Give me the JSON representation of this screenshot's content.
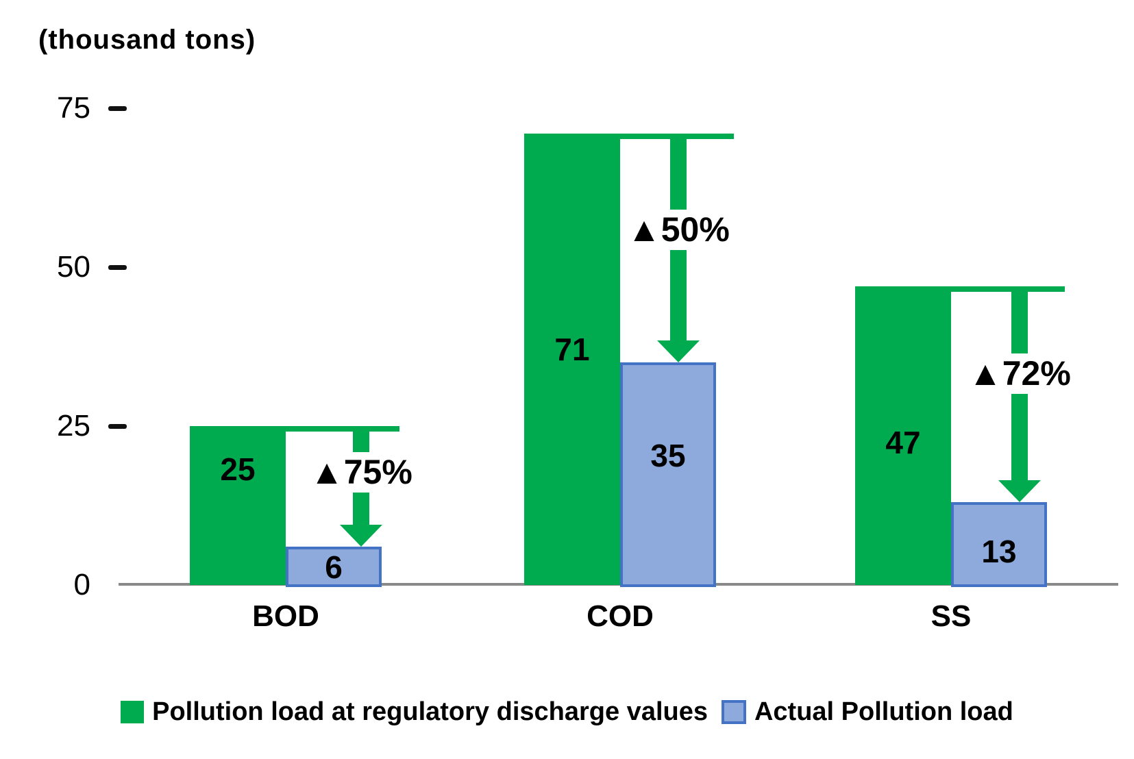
{
  "unit_label": "(thousand tons)",
  "chart_data": {
    "type": "bar",
    "title": "(thousand tons)",
    "categories": [
      "BOD",
      "COD",
      "SS"
    ],
    "series": [
      {
        "name": "Pollution load at regulatory discharge values",
        "color": "#00AB50",
        "values": [
          25,
          71,
          47
        ]
      },
      {
        "name": "Actual Pollution load",
        "color": "#8EA9DC",
        "border_color": "#4472C4",
        "values": [
          6,
          35,
          13
        ]
      }
    ],
    "annotations": [
      {
        "category": "BOD",
        "text": "▲75%"
      },
      {
        "category": "COD",
        "text": "▲50%"
      },
      {
        "category": "SS",
        "text": "▲72%"
      }
    ],
    "yticks": [
      75,
      50,
      25,
      0
    ],
    "ylim": [
      0,
      75
    ],
    "grid": false,
    "legend_position": "bottom",
    "arrow_color": "#00AB50",
    "annotation_text_color": "#000000",
    "axis_line_color": "#898989"
  }
}
